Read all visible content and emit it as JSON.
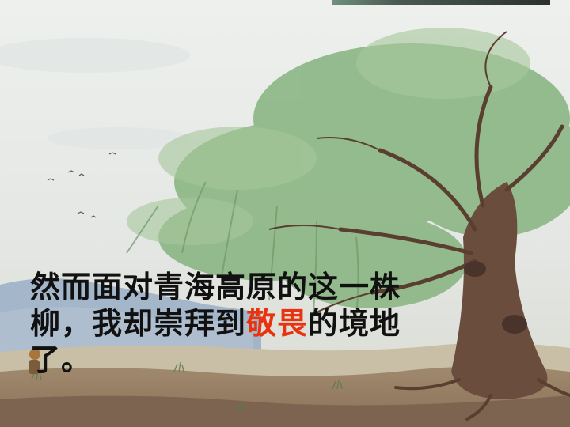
{
  "caption": {
    "part1": "然而面对青海高原的这一株柳，我却崇拜到",
    "highlight": "敬畏",
    "part2": "的境地了。"
  },
  "colors": {
    "highlight": "#e8330e",
    "text": "#111111",
    "sky": "#e9ebe6",
    "foliage": "#7fae7a"
  }
}
